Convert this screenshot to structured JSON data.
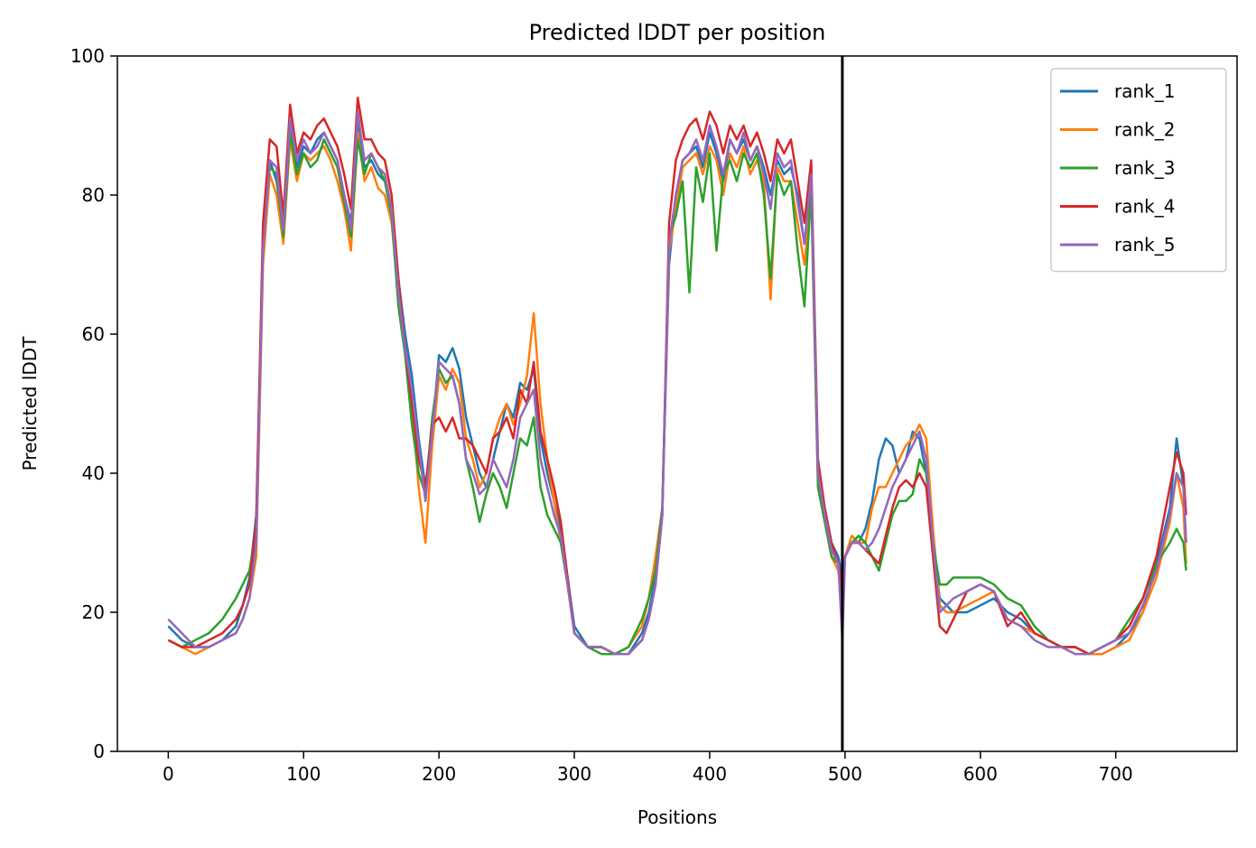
{
  "chart_data": {
    "type": "line",
    "title": "Predicted lDDT per position",
    "xlabel": "Positions",
    "ylabel": "Predicted lDDT",
    "xlim": [
      -37.6,
      789.6
    ],
    "ylim": [
      0,
      100
    ],
    "xticks": [
      0,
      100,
      200,
      300,
      400,
      500,
      600,
      700
    ],
    "yticks": [
      0,
      20,
      40,
      60,
      80,
      100
    ],
    "vline_x": 498,
    "legend_position": "upper right",
    "grid": false,
    "x": [
      0,
      10,
      20,
      30,
      40,
      50,
      55,
      60,
      65,
      70,
      75,
      80,
      85,
      90,
      95,
      100,
      105,
      110,
      115,
      120,
      125,
      130,
      135,
      140,
      145,
      150,
      155,
      160,
      165,
      170,
      175,
      180,
      185,
      190,
      195,
      200,
      205,
      210,
      215,
      220,
      225,
      230,
      235,
      240,
      245,
      250,
      255,
      260,
      265,
      270,
      275,
      280,
      285,
      290,
      295,
      300,
      310,
      320,
      330,
      340,
      350,
      355,
      360,
      365,
      370,
      375,
      380,
      385,
      390,
      395,
      400,
      405,
      410,
      415,
      420,
      425,
      430,
      435,
      440,
      445,
      450,
      455,
      460,
      465,
      470,
      475,
      480,
      485,
      490,
      495,
      498,
      500,
      505,
      510,
      515,
      520,
      525,
      530,
      535,
      540,
      545,
      550,
      555,
      560,
      565,
      570,
      575,
      580,
      590,
      600,
      610,
      620,
      630,
      640,
      650,
      660,
      670,
      680,
      690,
      700,
      710,
      720,
      730,
      740,
      745,
      750,
      752
    ],
    "series": [
      {
        "name": "rank_1",
        "color": "#1f77b4",
        "values": [
          18,
          16,
          15,
          15,
          16,
          18,
          21,
          25,
          34,
          72,
          85,
          82,
          75,
          90,
          84,
          87,
          86,
          88,
          89,
          87,
          85,
          80,
          76,
          90,
          84,
          85,
          83,
          82,
          78,
          68,
          60,
          54,
          45,
          38,
          46,
          57,
          56,
          58,
          55,
          48,
          44,
          40,
          38,
          42,
          46,
          50,
          48,
          53,
          52,
          55,
          45,
          40,
          36,
          32,
          25,
          18,
          15,
          15,
          14,
          14,
          17,
          20,
          25,
          35,
          70,
          80,
          85,
          86,
          87,
          84,
          89,
          86,
          82,
          88,
          86,
          88,
          85,
          87,
          84,
          80,
          85,
          83,
          84,
          80,
          73,
          82,
          40,
          35,
          30,
          28,
          25,
          28,
          30,
          30,
          32,
          36,
          42,
          45,
          44,
          40,
          42,
          46,
          45,
          40,
          30,
          22,
          21,
          20,
          20,
          21,
          22,
          20,
          19,
          17,
          16,
          15,
          15,
          14,
          14,
          15,
          17,
          20,
          27,
          35,
          45,
          38,
          30
        ]
      },
      {
        "name": "rank_2",
        "color": "#ff7f0e",
        "values": [
          16,
          15,
          14,
          15,
          16,
          17,
          19,
          22,
          28,
          70,
          83,
          80,
          73,
          88,
          82,
          86,
          85,
          86,
          87,
          85,
          82,
          78,
          72,
          89,
          82,
          84,
          81,
          80,
          76,
          66,
          58,
          50,
          38,
          30,
          44,
          54,
          52,
          55,
          53,
          45,
          42,
          38,
          40,
          45,
          48,
          50,
          47,
          50,
          54,
          63,
          50,
          42,
          36,
          30,
          24,
          17,
          15,
          15,
          14,
          15,
          18,
          22,
          28,
          35,
          72,
          78,
          84,
          85,
          86,
          83,
          87,
          85,
          80,
          86,
          84,
          87,
          83,
          85,
          82,
          65,
          84,
          82,
          82,
          76,
          70,
          80,
          38,
          33,
          28,
          26,
          22,
          28,
          31,
          30,
          30,
          35,
          38,
          38,
          40,
          42,
          44,
          45,
          47,
          45,
          32,
          21,
          20,
          20,
          21,
          22,
          23,
          19,
          18,
          17,
          16,
          15,
          14,
          14,
          14,
          15,
          16,
          20,
          25,
          33,
          40,
          35,
          27
        ]
      },
      {
        "name": "rank_3",
        "color": "#2ca02c",
        "values": [
          16,
          15,
          16,
          17,
          19,
          22,
          24,
          26,
          32,
          74,
          84,
          83,
          74,
          89,
          83,
          86,
          84,
          85,
          88,
          86,
          84,
          79,
          74,
          88,
          83,
          86,
          84,
          82,
          77,
          64,
          57,
          47,
          40,
          37,
          48,
          55,
          53,
          54,
          50,
          42,
          38,
          33,
          37,
          40,
          38,
          35,
          40,
          45,
          44,
          48,
          38,
          34,
          32,
          30,
          24,
          17,
          15,
          14,
          14,
          15,
          19,
          22,
          26,
          35,
          74,
          77,
          82,
          66,
          84,
          79,
          86,
          72,
          83,
          85,
          82,
          86,
          84,
          86,
          80,
          68,
          83,
          80,
          82,
          72,
          64,
          81,
          38,
          33,
          28,
          27,
          20,
          28,
          30,
          31,
          30,
          28,
          26,
          30,
          34,
          36,
          36,
          37,
          42,
          40,
          30,
          24,
          24,
          25,
          25,
          25,
          24,
          22,
          21,
          18,
          16,
          15,
          15,
          14,
          15,
          16,
          19,
          22,
          27,
          30,
          32,
          30,
          26
        ]
      },
      {
        "name": "rank_4",
        "color": "#d62728",
        "values": [
          16,
          15,
          15,
          16,
          17,
          19,
          21,
          24,
          33,
          76,
          88,
          87,
          77,
          93,
          86,
          89,
          88,
          90,
          91,
          89,
          87,
          83,
          78,
          94,
          88,
          88,
          86,
          85,
          80,
          68,
          58,
          50,
          42,
          38,
          47,
          48,
          46,
          48,
          45,
          45,
          44,
          42,
          40,
          45,
          46,
          48,
          45,
          52,
          50,
          56,
          46,
          42,
          38,
          33,
          25,
          17,
          15,
          15,
          14,
          14,
          16,
          19,
          24,
          34,
          76,
          85,
          88,
          90,
          91,
          88,
          92,
          90,
          86,
          90,
          88,
          90,
          87,
          89,
          86,
          82,
          88,
          86,
          88,
          82,
          76,
          85,
          42,
          35,
          30,
          27,
          23,
          28,
          30,
          30,
          29,
          28,
          27,
          31,
          35,
          38,
          39,
          38,
          40,
          38,
          28,
          18,
          17,
          19,
          23,
          24,
          23,
          18,
          20,
          17,
          16,
          15,
          15,
          14,
          15,
          16,
          18,
          22,
          28,
          38,
          43,
          40,
          34
        ]
      },
      {
        "name": "rank_5",
        "color": "#9467bd",
        "values": [
          19,
          17,
          15,
          15,
          16,
          17,
          19,
          22,
          30,
          72,
          85,
          84,
          75,
          91,
          85,
          88,
          86,
          87,
          89,
          87,
          85,
          80,
          75,
          92,
          85,
          86,
          84,
          83,
          78,
          66,
          58,
          52,
          44,
          36,
          46,
          56,
          55,
          54,
          50,
          42,
          40,
          37,
          38,
          42,
          40,
          38,
          42,
          48,
          50,
          52,
          42,
          38,
          34,
          31,
          24,
          17,
          15,
          15,
          14,
          14,
          16,
          19,
          24,
          34,
          73,
          80,
          85,
          86,
          88,
          85,
          90,
          87,
          83,
          88,
          86,
          89,
          85,
          87,
          83,
          78,
          86,
          84,
          85,
          79,
          73,
          83,
          40,
          34,
          29,
          27,
          16,
          28,
          30,
          30,
          29,
          30,
          32,
          35,
          38,
          40,
          42,
          44,
          46,
          42,
          30,
          20,
          21,
          22,
          23,
          24,
          23,
          19,
          18,
          16,
          15,
          15,
          14,
          14,
          15,
          16,
          17,
          21,
          26,
          34,
          40,
          38,
          30
        ]
      }
    ]
  }
}
